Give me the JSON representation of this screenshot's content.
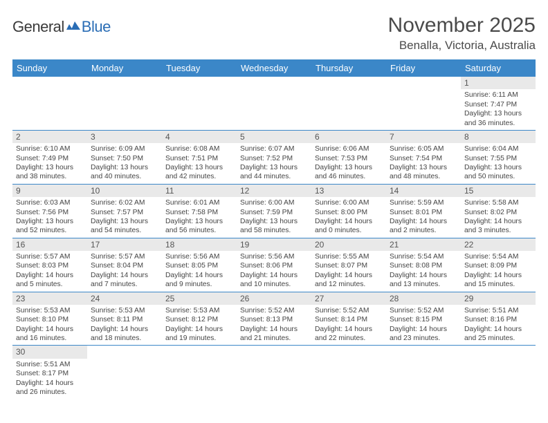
{
  "logo": {
    "main": "General",
    "sub": "Blue"
  },
  "title": "November 2025",
  "location": "Benalla, Victoria, Australia",
  "colors": {
    "header_bg": "#3b87c8",
    "header_text": "#ffffff",
    "daynum_bg": "#e9e9e9",
    "border": "#3b87c8",
    "text": "#444444",
    "title_text": "#4a4a4a",
    "logo_blue": "#2a6db5"
  },
  "weekdays": [
    "Sunday",
    "Monday",
    "Tuesday",
    "Wednesday",
    "Thursday",
    "Friday",
    "Saturday"
  ],
  "weeks": [
    [
      null,
      null,
      null,
      null,
      null,
      null,
      {
        "n": "1",
        "sunrise": "6:11 AM",
        "sunset": "7:47 PM",
        "daylight": "13 hours and 36 minutes."
      }
    ],
    [
      {
        "n": "2",
        "sunrise": "6:10 AM",
        "sunset": "7:49 PM",
        "daylight": "13 hours and 38 minutes."
      },
      {
        "n": "3",
        "sunrise": "6:09 AM",
        "sunset": "7:50 PM",
        "daylight": "13 hours and 40 minutes."
      },
      {
        "n": "4",
        "sunrise": "6:08 AM",
        "sunset": "7:51 PM",
        "daylight": "13 hours and 42 minutes."
      },
      {
        "n": "5",
        "sunrise": "6:07 AM",
        "sunset": "7:52 PM",
        "daylight": "13 hours and 44 minutes."
      },
      {
        "n": "6",
        "sunrise": "6:06 AM",
        "sunset": "7:53 PM",
        "daylight": "13 hours and 46 minutes."
      },
      {
        "n": "7",
        "sunrise": "6:05 AM",
        "sunset": "7:54 PM",
        "daylight": "13 hours and 48 minutes."
      },
      {
        "n": "8",
        "sunrise": "6:04 AM",
        "sunset": "7:55 PM",
        "daylight": "13 hours and 50 minutes."
      }
    ],
    [
      {
        "n": "9",
        "sunrise": "6:03 AM",
        "sunset": "7:56 PM",
        "daylight": "13 hours and 52 minutes."
      },
      {
        "n": "10",
        "sunrise": "6:02 AM",
        "sunset": "7:57 PM",
        "daylight": "13 hours and 54 minutes."
      },
      {
        "n": "11",
        "sunrise": "6:01 AM",
        "sunset": "7:58 PM",
        "daylight": "13 hours and 56 minutes."
      },
      {
        "n": "12",
        "sunrise": "6:00 AM",
        "sunset": "7:59 PM",
        "daylight": "13 hours and 58 minutes."
      },
      {
        "n": "13",
        "sunrise": "6:00 AM",
        "sunset": "8:00 PM",
        "daylight": "14 hours and 0 minutes."
      },
      {
        "n": "14",
        "sunrise": "5:59 AM",
        "sunset": "8:01 PM",
        "daylight": "14 hours and 2 minutes."
      },
      {
        "n": "15",
        "sunrise": "5:58 AM",
        "sunset": "8:02 PM",
        "daylight": "14 hours and 3 minutes."
      }
    ],
    [
      {
        "n": "16",
        "sunrise": "5:57 AM",
        "sunset": "8:03 PM",
        "daylight": "14 hours and 5 minutes."
      },
      {
        "n": "17",
        "sunrise": "5:57 AM",
        "sunset": "8:04 PM",
        "daylight": "14 hours and 7 minutes."
      },
      {
        "n": "18",
        "sunrise": "5:56 AM",
        "sunset": "8:05 PM",
        "daylight": "14 hours and 9 minutes."
      },
      {
        "n": "19",
        "sunrise": "5:56 AM",
        "sunset": "8:06 PM",
        "daylight": "14 hours and 10 minutes."
      },
      {
        "n": "20",
        "sunrise": "5:55 AM",
        "sunset": "8:07 PM",
        "daylight": "14 hours and 12 minutes."
      },
      {
        "n": "21",
        "sunrise": "5:54 AM",
        "sunset": "8:08 PM",
        "daylight": "14 hours and 13 minutes."
      },
      {
        "n": "22",
        "sunrise": "5:54 AM",
        "sunset": "8:09 PM",
        "daylight": "14 hours and 15 minutes."
      }
    ],
    [
      {
        "n": "23",
        "sunrise": "5:53 AM",
        "sunset": "8:10 PM",
        "daylight": "14 hours and 16 minutes."
      },
      {
        "n": "24",
        "sunrise": "5:53 AM",
        "sunset": "8:11 PM",
        "daylight": "14 hours and 18 minutes."
      },
      {
        "n": "25",
        "sunrise": "5:53 AM",
        "sunset": "8:12 PM",
        "daylight": "14 hours and 19 minutes."
      },
      {
        "n": "26",
        "sunrise": "5:52 AM",
        "sunset": "8:13 PM",
        "daylight": "14 hours and 21 minutes."
      },
      {
        "n": "27",
        "sunrise": "5:52 AM",
        "sunset": "8:14 PM",
        "daylight": "14 hours and 22 minutes."
      },
      {
        "n": "28",
        "sunrise": "5:52 AM",
        "sunset": "8:15 PM",
        "daylight": "14 hours and 23 minutes."
      },
      {
        "n": "29",
        "sunrise": "5:51 AM",
        "sunset": "8:16 PM",
        "daylight": "14 hours and 25 minutes."
      }
    ],
    [
      {
        "n": "30",
        "sunrise": "5:51 AM",
        "sunset": "8:17 PM",
        "daylight": "14 hours and 26 minutes."
      },
      null,
      null,
      null,
      null,
      null,
      null
    ]
  ],
  "labels": {
    "sunrise": "Sunrise:",
    "sunset": "Sunset:",
    "daylight": "Daylight:"
  }
}
